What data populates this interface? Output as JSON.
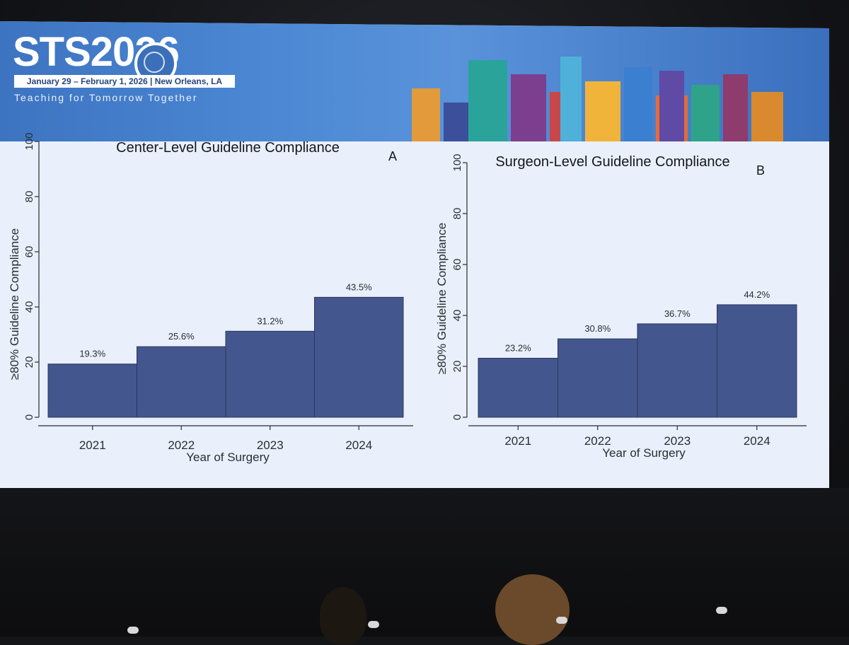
{
  "banner": {
    "logo_text": "STS2026",
    "dates": "January 29 – February 1, 2026 | New Orleans, LA",
    "tagline": "Teaching for Tomorrow Together"
  },
  "colors": {
    "bar": "#44568e",
    "bar_edge": "#2b3660",
    "axis": "#2a2d33"
  },
  "chart_data": [
    {
      "type": "bar",
      "title": "Center-Level Guideline Compliance",
      "panel_letter": "A",
      "categories": [
        "2021",
        "2022",
        "2023",
        "2024"
      ],
      "values": [
        19.3,
        25.6,
        31.2,
        43.5
      ],
      "value_labels": [
        "19.3%",
        "25.6%",
        "31.2%",
        "43.5%"
      ],
      "xlabel": "Year of Surgery",
      "ylabel": "≥80% Guideline Compliance",
      "ylim": [
        0,
        100
      ],
      "yticks": [
        "0",
        "20",
        "40",
        "60",
        "80",
        "100"
      ],
      "grid": false
    },
    {
      "type": "bar",
      "title": "Surgeon-Level Guideline Compliance",
      "panel_letter": "B",
      "categories": [
        "2021",
        "2022",
        "2023",
        "2024"
      ],
      "values": [
        23.2,
        30.8,
        36.7,
        44.2
      ],
      "value_labels": [
        "23.2%",
        "30.8%",
        "36.7%",
        "44.2%"
      ],
      "xlabel": "Year of Surgery",
      "ylabel": "≥80% Guideline Compliance",
      "ylim": [
        0,
        100
      ],
      "yticks": [
        "0",
        "20",
        "40",
        "60",
        "80",
        "100"
      ],
      "grid": false
    }
  ]
}
